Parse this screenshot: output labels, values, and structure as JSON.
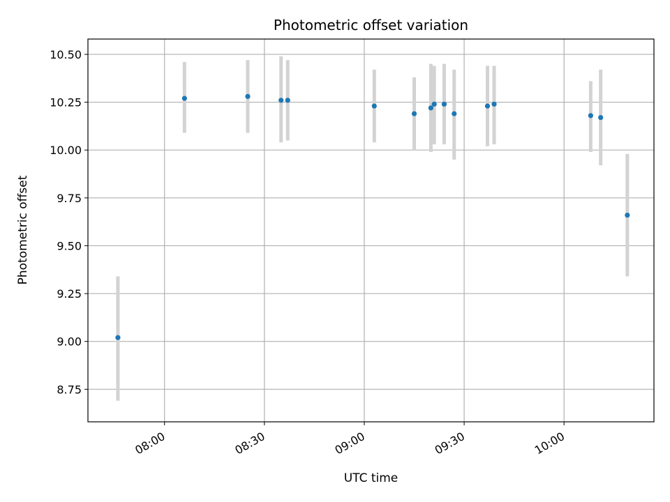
{
  "chart_data": {
    "type": "scatter",
    "title": "Photometric offset variation",
    "xlabel": "UTC time",
    "ylabel": "Photometric offset",
    "x_ticks": [
      "08:00",
      "08:30",
      "09:00",
      "09:30",
      "10:00"
    ],
    "y_ticks": [
      "8.75",
      "9.00",
      "9.25",
      "9.50",
      "9.75",
      "10.00",
      "10.25",
      "10.50"
    ],
    "xlim": [
      "07:37",
      "10:27"
    ],
    "ylim": [
      8.58,
      10.58
    ],
    "grid": true,
    "marker_color": "#1f77b4",
    "errorbar_color": "#d3d3d3",
    "points": [
      {
        "x": "07:46",
        "y": 9.02,
        "yerr_low": 8.69,
        "yerr_high": 9.34
      },
      {
        "x": "08:06",
        "y": 10.27,
        "yerr_low": 10.09,
        "yerr_high": 10.46
      },
      {
        "x": "08:25",
        "y": 10.28,
        "yerr_low": 10.09,
        "yerr_high": 10.47
      },
      {
        "x": "08:35",
        "y": 10.26,
        "yerr_low": 10.04,
        "yerr_high": 10.49
      },
      {
        "x": "08:37",
        "y": 10.26,
        "yerr_low": 10.05,
        "yerr_high": 10.47
      },
      {
        "x": "09:03",
        "y": 10.23,
        "yerr_low": 10.04,
        "yerr_high": 10.42
      },
      {
        "x": "09:15",
        "y": 10.19,
        "yerr_low": 10.0,
        "yerr_high": 10.38
      },
      {
        "x": "09:20",
        "y": 10.22,
        "yerr_low": 9.99,
        "yerr_high": 10.45
      },
      {
        "x": "09:21",
        "y": 10.24,
        "yerr_low": 10.03,
        "yerr_high": 10.44
      },
      {
        "x": "09:24",
        "y": 10.24,
        "yerr_low": 10.03,
        "yerr_high": 10.45
      },
      {
        "x": "09:27",
        "y": 10.19,
        "yerr_low": 9.95,
        "yerr_high": 10.42
      },
      {
        "x": "09:37",
        "y": 10.23,
        "yerr_low": 10.02,
        "yerr_high": 10.44
      },
      {
        "x": "09:39",
        "y": 10.24,
        "yerr_low": 10.03,
        "yerr_high": 10.44
      },
      {
        "x": "10:08",
        "y": 10.18,
        "yerr_low": 9.99,
        "yerr_high": 10.36
      },
      {
        "x": "10:11",
        "y": 10.17,
        "yerr_low": 9.92,
        "yerr_high": 10.42
      },
      {
        "x": "10:19",
        "y": 9.66,
        "yerr_low": 9.34,
        "yerr_high": 9.98
      }
    ]
  }
}
